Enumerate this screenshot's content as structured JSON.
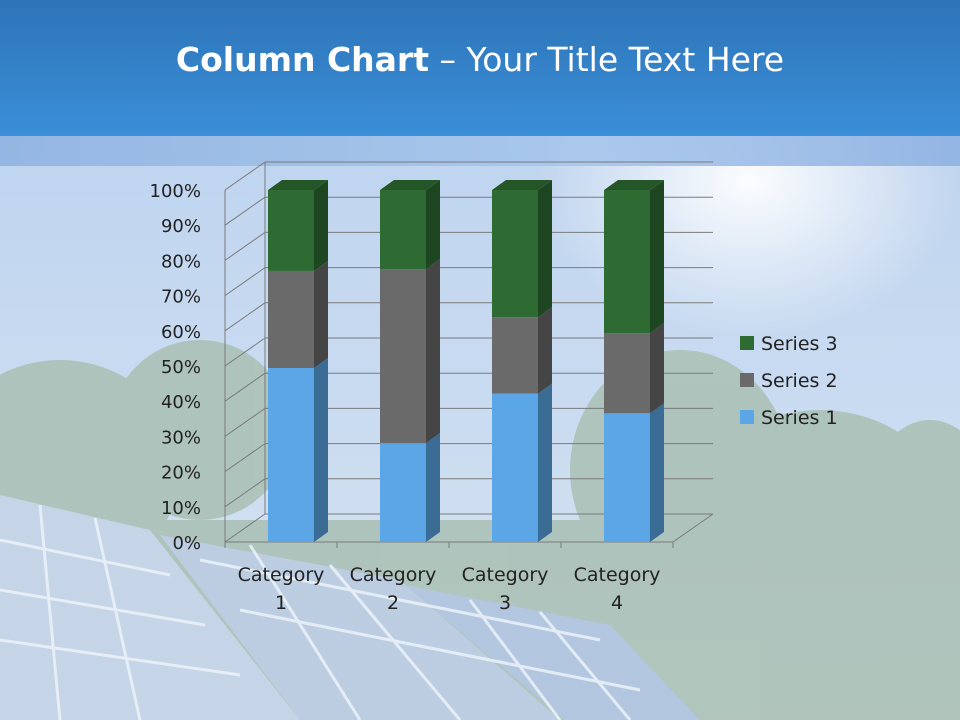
{
  "slide": {
    "title_bold": "Column Chart",
    "title_rest": " – Your Title Text Here"
  },
  "colors": {
    "series1": "#5ba6e6",
    "series2": "#6a6a6a",
    "series3": "#2e6b32",
    "title_bar": "#3585d0"
  },
  "chart_data": {
    "type": "bar",
    "stacked": "percent",
    "categories": [
      "Category 1",
      "Category 2",
      "Category 3",
      "Category 4"
    ],
    "category_lines": [
      [
        "Category",
        "1"
      ],
      [
        "Category",
        "2"
      ],
      [
        "Category",
        "3"
      ],
      [
        "Category",
        "4"
      ]
    ],
    "series": [
      {
        "name": "Series 1",
        "values": [
          4.3,
          2.5,
          3.5,
          4.5
        ]
      },
      {
        "name": "Series 2",
        "values": [
          2.4,
          4.4,
          1.8,
          2.8
        ]
      },
      {
        "name": "Series 3",
        "values": [
          2,
          2,
          3,
          5
        ]
      }
    ],
    "y_ticks": [
      "0%",
      "10%",
      "20%",
      "30%",
      "40%",
      "50%",
      "60%",
      "70%",
      "80%",
      "90%",
      "100%"
    ],
    "ylim": [
      0,
      100
    ],
    "grid": true,
    "legend": "right",
    "legend_order": [
      "Series 3",
      "Series 2",
      "Series 1"
    ]
  }
}
